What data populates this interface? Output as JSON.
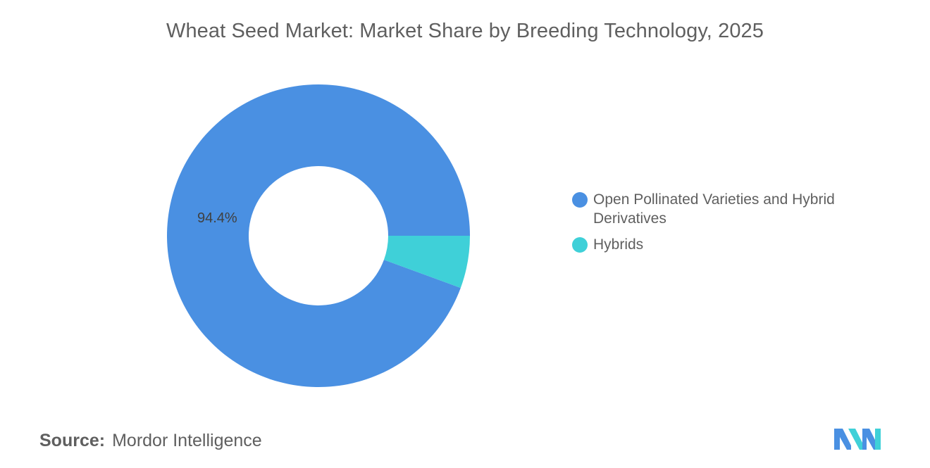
{
  "title": "Wheat Seed Market: Market Share by Breeding Technology, 2025",
  "source": {
    "label": "Source:",
    "value": "Mordor Intelligence"
  },
  "chart_data": {
    "type": "pie",
    "variant": "donut",
    "title": "Wheat Seed Market: Market Share by Breeding Technology, 2025",
    "categories": [
      "Open Pollinated Varieties and Hybrid Derivatives",
      "Hybrids"
    ],
    "values": [
      94.4,
      5.6
    ],
    "unit": "%",
    "data_labels": [
      "94.4%",
      ""
    ],
    "colors": [
      "#4a90e2",
      "#3fd0d8"
    ],
    "legend_position": "right"
  },
  "logo": {
    "name": "mordor-intelligence-logo",
    "colors": [
      "#4a90e2",
      "#3fd0d8"
    ]
  }
}
